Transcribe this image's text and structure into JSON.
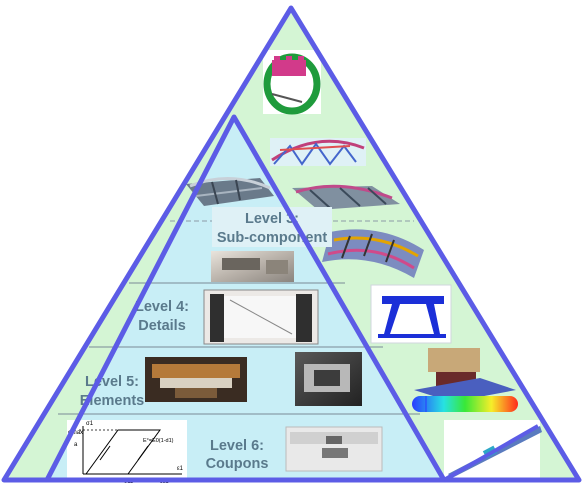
{
  "colors": {
    "outer_fill": "#d4f5d4",
    "inner_fill": "#c8eef6",
    "triangle_stroke": "#5c5ce6",
    "divider": "#7a8a96",
    "dashed": "#8c9aa6",
    "label_text": "#5a7a8c",
    "label_box": "#dff1f6"
  },
  "pyramid": {
    "levels": [
      {
        "id": 3,
        "line1": "Level 3:",
        "line2": "Sub-component"
      },
      {
        "id": 4,
        "line1": "Level 4:",
        "line2": "Details"
      },
      {
        "id": 5,
        "line1": "Level 5:",
        "line2": "Elements"
      },
      {
        "id": 6,
        "line1": "Level 6:",
        "line2": "Coupons"
      }
    ],
    "coupon_graph": {
      "y_max_label": "σmax",
      "y_label": "σ1",
      "x_label": "ε1",
      "x_mark_label": "εu1",
      "y_small": "a",
      "curve_label": "E°=E0(1-d1)",
      "x_low_label": "σ11"
    }
  },
  "images": [
    "ring-component-photo",
    "arch-structure-render",
    "fuselage-section-render",
    "stiffened-panel-render",
    "curved-panel-render",
    "detail-fixture-photo",
    "frame-specimen-render",
    "detail-test-photo",
    "element-test-photo",
    "element-fixture-photo",
    "joint-specimen-render",
    "beam-stress-contour",
    "coupon-specimen-photo",
    "coupon-beam-render"
  ]
}
